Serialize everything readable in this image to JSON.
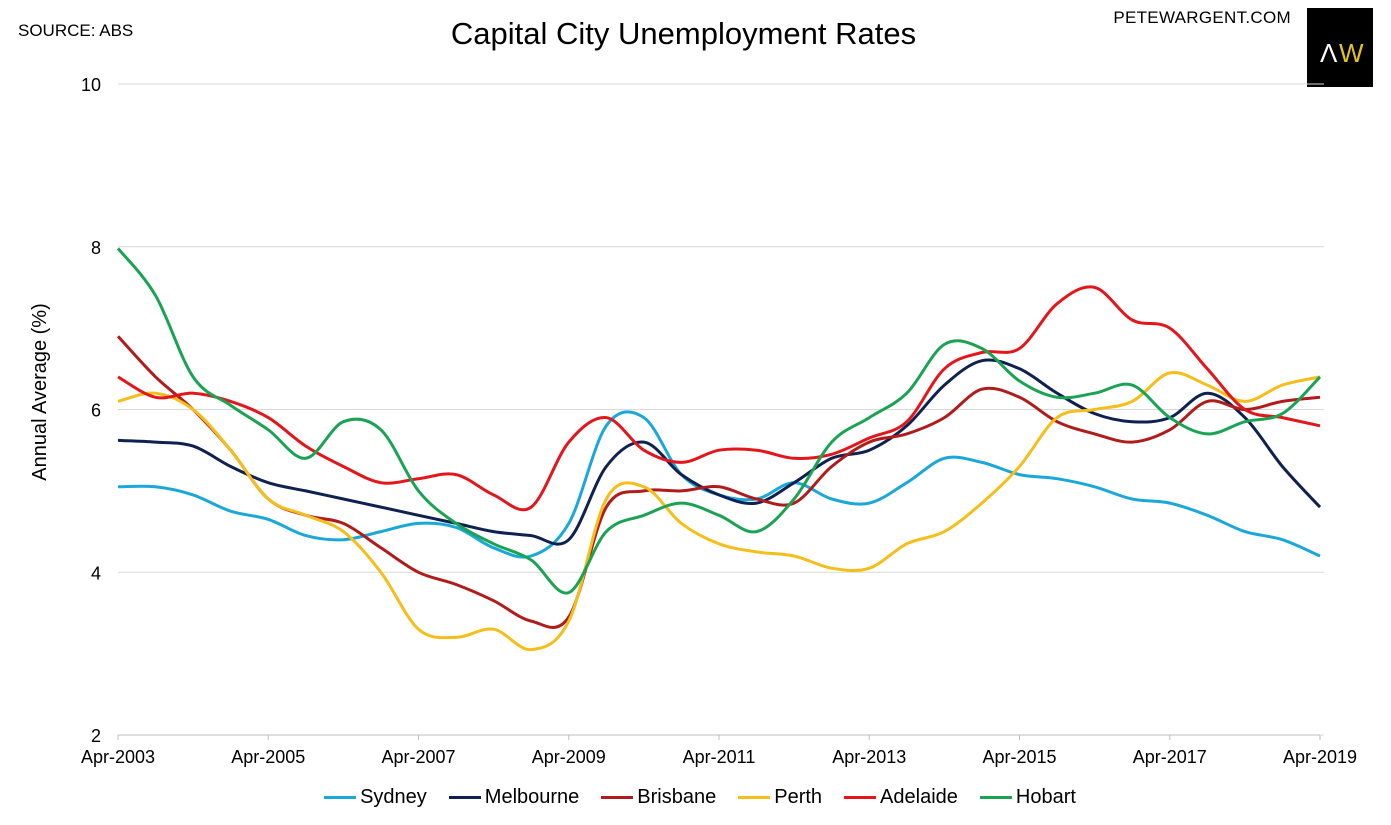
{
  "header": {
    "source": "SOURCE: ABS",
    "site": "PETEWARGENT.COM",
    "logo_text": "AW"
  },
  "chart_data": {
    "type": "line",
    "title": "Capital City Unemployment Rates",
    "xlabel": "",
    "ylabel": "Annual Average (%)",
    "xlim": [
      "Apr-2003",
      "Apr-2019"
    ],
    "ylim": [
      2,
      10
    ],
    "yticks": [
      2,
      4,
      6,
      8,
      10
    ],
    "xticks": [
      "Apr-2003",
      "Apr-2005",
      "Apr-2007",
      "Apr-2009",
      "Apr-2011",
      "Apr-2013",
      "Apr-2015",
      "Apr-2017",
      "Apr-2019"
    ],
    "grid": true,
    "legend_position": "bottom",
    "x": [
      "Apr-2003",
      "Oct-2003",
      "Apr-2004",
      "Oct-2004",
      "Apr-2005",
      "Oct-2005",
      "Apr-2006",
      "Oct-2006",
      "Apr-2007",
      "Oct-2007",
      "Apr-2008",
      "Oct-2008",
      "Apr-2009",
      "Oct-2009",
      "Apr-2010",
      "Oct-2010",
      "Apr-2011",
      "Oct-2011",
      "Apr-2012",
      "Oct-2012",
      "Apr-2013",
      "Oct-2013",
      "Apr-2014",
      "Oct-2014",
      "Apr-2015",
      "Oct-2015",
      "Apr-2016",
      "Oct-2016",
      "Apr-2017",
      "Oct-2017",
      "Apr-2018",
      "Oct-2018",
      "Apr-2019"
    ],
    "series": [
      {
        "name": "Sydney",
        "color": "#1aa7d9",
        "values": [
          5.05,
          5.05,
          4.95,
          4.75,
          4.65,
          4.45,
          4.4,
          4.5,
          4.6,
          4.55,
          4.3,
          4.2,
          4.6,
          5.8,
          5.9,
          5.2,
          4.95,
          4.9,
          5.1,
          4.9,
          4.85,
          5.1,
          5.4,
          5.35,
          5.2,
          5.15,
          5.05,
          4.9,
          4.85,
          4.7,
          4.5,
          4.4,
          4.2
        ]
      },
      {
        "name": "Melbourne",
        "color": "#0f2151",
        "values": [
          5.62,
          5.6,
          5.55,
          5.3,
          5.1,
          5.0,
          4.9,
          4.8,
          4.7,
          4.6,
          4.5,
          4.45,
          4.4,
          5.3,
          5.6,
          5.2,
          4.95,
          4.85,
          5.1,
          5.4,
          5.5,
          5.8,
          6.3,
          6.6,
          6.5,
          6.2,
          5.95,
          5.85,
          5.9,
          6.2,
          5.9,
          5.3,
          4.8
        ]
      },
      {
        "name": "Brisbane",
        "color": "#b01c1c",
        "values": [
          6.9,
          6.4,
          6.0,
          5.5,
          4.9,
          4.7,
          4.6,
          4.3,
          4.0,
          3.85,
          3.65,
          3.4,
          3.45,
          4.8,
          5.0,
          5.0,
          5.05,
          4.9,
          4.85,
          5.3,
          5.6,
          5.7,
          5.9,
          6.25,
          6.15,
          5.85,
          5.7,
          5.6,
          5.75,
          6.1,
          6.0,
          6.1,
          6.15
        ]
      },
      {
        "name": "Perth",
        "color": "#f5be1a",
        "values": [
          6.1,
          6.2,
          6.0,
          5.5,
          4.9,
          4.7,
          4.5,
          4.0,
          3.3,
          3.2,
          3.3,
          3.05,
          3.4,
          4.9,
          5.05,
          4.6,
          4.35,
          4.25,
          4.2,
          4.05,
          4.05,
          4.35,
          4.5,
          4.85,
          5.3,
          5.9,
          6.0,
          6.1,
          6.45,
          6.3,
          6.1,
          6.3,
          6.4
        ]
      },
      {
        "name": "Adelaide",
        "color": "#e3161b",
        "values": [
          6.4,
          6.15,
          6.2,
          6.1,
          5.9,
          5.55,
          5.3,
          5.1,
          5.15,
          5.2,
          4.95,
          4.8,
          5.6,
          5.9,
          5.5,
          5.35,
          5.5,
          5.5,
          5.4,
          5.45,
          5.65,
          5.85,
          6.5,
          6.7,
          6.75,
          7.3,
          7.5,
          7.1,
          7.0,
          6.5,
          6.0,
          5.9,
          5.8
        ]
      },
      {
        "name": "Hobart",
        "color": "#1ba354",
        "values": [
          7.98,
          7.4,
          6.4,
          6.05,
          5.75,
          5.4,
          5.85,
          5.75,
          5.0,
          4.6,
          4.35,
          4.15,
          3.75,
          4.5,
          4.7,
          4.85,
          4.7,
          4.5,
          4.9,
          5.6,
          5.9,
          6.2,
          6.8,
          6.75,
          6.35,
          6.15,
          6.2,
          6.3,
          5.9,
          5.7,
          5.85,
          5.95,
          6.4
        ]
      }
    ]
  }
}
